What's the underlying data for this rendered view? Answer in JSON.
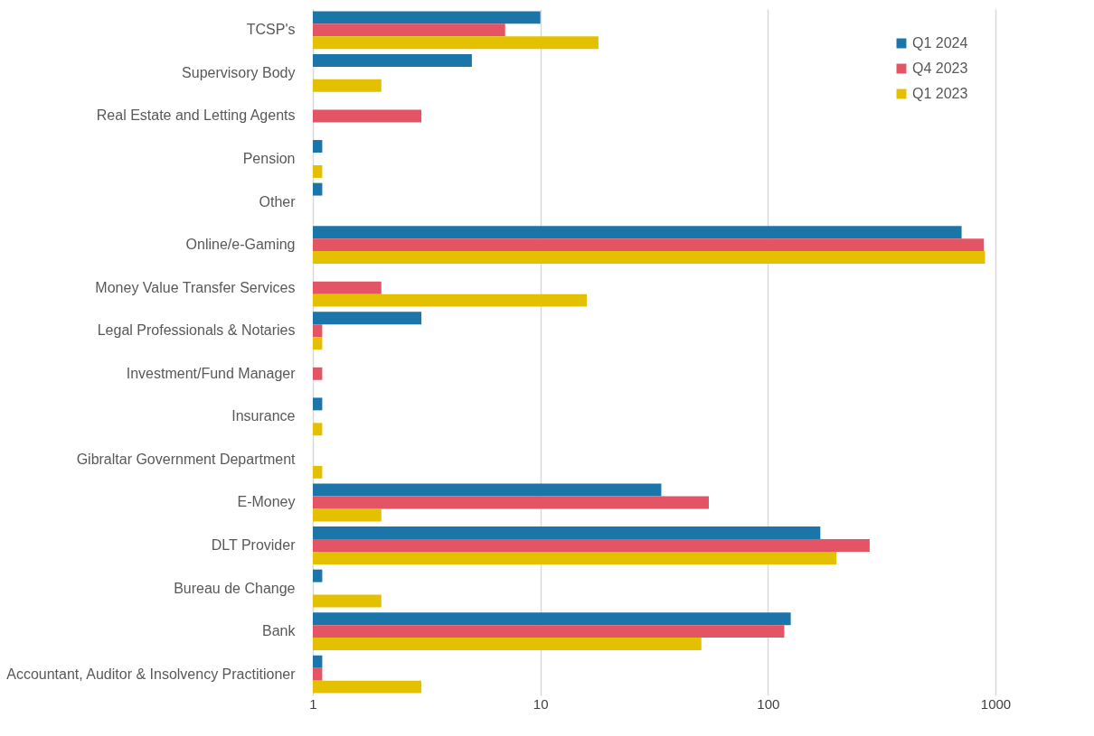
{
  "chart_data": {
    "type": "bar",
    "orientation": "horizontal",
    "log": "x",
    "categories": [
      "TCSP's",
      "Supervisory Body",
      "Real Estate and Letting Agents",
      "Pension",
      "Other",
      "Online/e-Gaming",
      "Money Value Transfer Services",
      "Legal Professionals & Notaries",
      "Investment/Fund Manager",
      "Insurance",
      "Gibraltar Government Department",
      "E-Money",
      "DLT Provider",
      "Bureau de Change",
      "Bank",
      "Accountant, Auditor & Insolvency Practitioner"
    ],
    "series": [
      {
        "name": "Q1 2024",
        "color": "#1b75a8",
        "values": [
          10,
          5,
          null,
          1.1,
          1.1,
          710,
          null,
          3,
          null,
          1.1,
          null,
          34,
          170,
          1.1,
          126,
          1.1
        ]
      },
      {
        "name": "Q4 2023",
        "color": "#e35565",
        "values": [
          7,
          null,
          3,
          null,
          null,
          890,
          2,
          1.1,
          1.1,
          null,
          null,
          55,
          280,
          null,
          118,
          1.1
        ]
      },
      {
        "name": "Q1 2023",
        "color": "#e3c000",
        "values": [
          18,
          2,
          null,
          1.1,
          null,
          900,
          16,
          1.1,
          null,
          1.1,
          1.1,
          2,
          200,
          2,
          51,
          3
        ]
      }
    ],
    "xlim": [
      1,
      1000
    ],
    "xticks": [
      1,
      10,
      100,
      1000
    ],
    "grid": "x",
    "legend": "top right"
  }
}
